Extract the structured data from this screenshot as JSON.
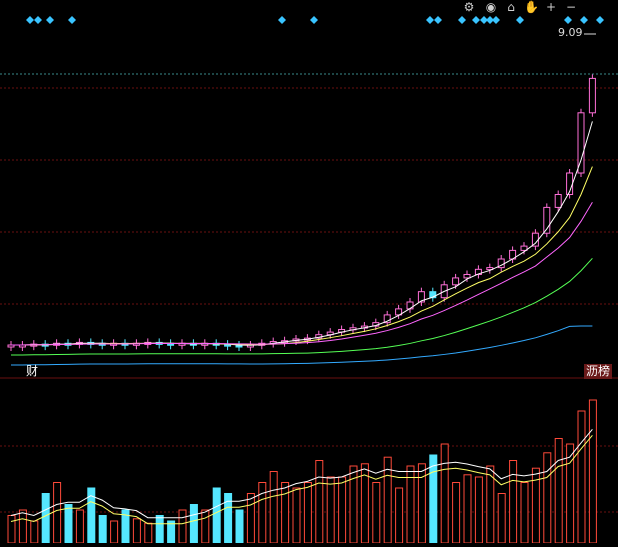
{
  "toolbar": {
    "icons": [
      "settings-icon",
      "eye-icon",
      "basket-icon",
      "hand-icon",
      "zoom-in-icon",
      "zoom-out-icon"
    ],
    "glyphs": [
      "⚙",
      "◉",
      "⌂",
      "✋",
      "+",
      "−"
    ]
  },
  "price_label": "9.09",
  "tags": {
    "left": "财",
    "right": "沥榜"
  },
  "colors": {
    "background": "#000000",
    "up": "#ff6fd8",
    "down": "#55e7ff",
    "grid": "#6a0f0f",
    "ma5": "#ffffff",
    "ma10": "#ffff66",
    "ma20": "#ff66ff",
    "ma60": "#55ff55",
    "ma120": "#33aaff",
    "volume_up": "#ff4a3a",
    "volume_down": "#55e7ff",
    "marker": "#39c4ff"
  },
  "chart_data": {
    "type": "candlestick",
    "price_series_level": [
      1.0,
      1.0,
      1.01,
      1.0,
      1.02,
      1.01,
      1.03,
      1.02,
      1.01,
      1.02,
      1.01,
      1.02,
      1.03,
      1.02,
      1.01,
      1.02,
      1.01,
      1.02,
      1.01,
      1.0,
      0.99,
      1.0,
      1.02,
      1.04,
      1.05,
      1.07,
      1.08,
      1.12,
      1.15,
      1.18,
      1.2,
      1.22,
      1.26,
      1.35,
      1.42,
      1.5,
      1.62,
      1.55,
      1.7,
      1.78,
      1.82,
      1.88,
      1.9,
      2.0,
      2.1,
      2.15,
      2.3,
      2.6,
      2.75,
      3.0,
      3.7,
      4.1
    ],
    "volume_level": [
      0.25,
      0.3,
      0.2,
      0.45,
      0.55,
      0.35,
      0.3,
      0.5,
      0.25,
      0.2,
      0.3,
      0.22,
      0.18,
      0.25,
      0.2,
      0.3,
      0.35,
      0.3,
      0.5,
      0.45,
      0.3,
      0.45,
      0.55,
      0.65,
      0.55,
      0.5,
      0.55,
      0.75,
      0.6,
      0.6,
      0.7,
      0.72,
      0.55,
      0.78,
      0.5,
      0.7,
      0.72,
      0.8,
      0.9,
      0.55,
      0.62,
      0.6,
      0.7,
      0.45,
      0.75,
      0.55,
      0.68,
      0.82,
      0.95,
      0.9,
      1.2,
      1.3
    ]
  }
}
